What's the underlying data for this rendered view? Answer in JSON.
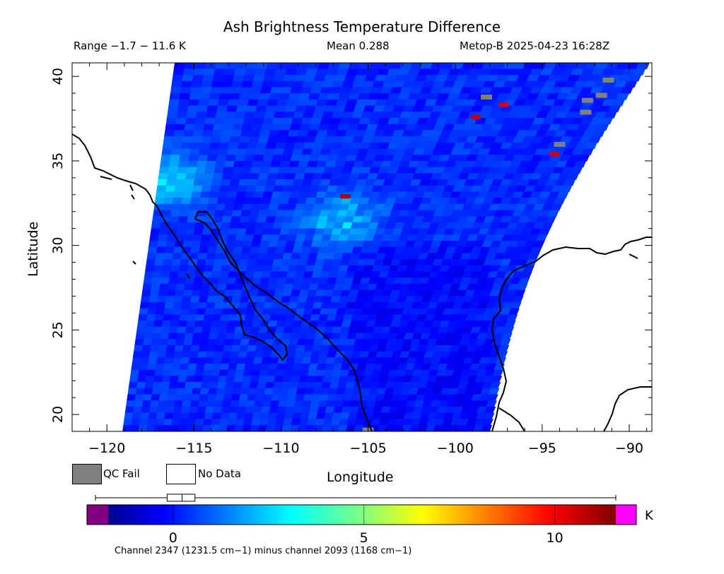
{
  "header": {
    "title": "Ash Brightness Temperature Difference",
    "range": "Range −1.7 − 11.6 K",
    "mean": "Mean 0.288",
    "satellite": "Metop-B 2025-04-23 16:28Z"
  },
  "legend": {
    "qc_fail": "QC Fail",
    "no_data": "No Data"
  },
  "colorbar": {
    "unit": "K",
    "note": "Channel 2347 (1231.5 cm−1) minus channel 2093 (1168 cm−1)",
    "tick_labels": [
      "0",
      "5",
      "10"
    ],
    "under_color": "#800080",
    "over_color": "#ff00ff"
  },
  "chart_data": {
    "type": "heatmap",
    "title": "Ash Brightness Temperature Difference",
    "xlabel": "Longitude",
    "ylabel": "Latitude",
    "xlim": [
      -122,
      -88.7
    ],
    "ylim": [
      19,
      40.8
    ],
    "x_ticks": [
      -120,
      -115,
      -110,
      -105,
      -100,
      -95,
      -90
    ],
    "x_tick_labels": [
      "−120",
      "−115",
      "−110",
      "−105",
      "−100",
      "−95",
      "−90"
    ],
    "y_ticks": [
      20,
      25,
      30,
      35,
      40
    ],
    "y_tick_labels": [
      "20",
      "25",
      "30",
      "35",
      "40"
    ],
    "colorbar_range": [
      -1.7,
      11.6
    ],
    "colorbar_ticks": [
      0,
      5,
      10
    ],
    "value_range": [
      -1.7,
      11.6
    ],
    "mean_value": 0.288,
    "typical_value": 0.5,
    "boxplot": {
      "min": -1.7,
      "q1": -0.1,
      "median": 0.2,
      "q3": 0.5,
      "max": 11.6
    },
    "swath_corners": {
      "top_left": [
        -116.1,
        40.8
      ],
      "top_right": [
        -88.8,
        40.8
      ],
      "bottom_left": [
        -119.1,
        19
      ],
      "bottom_right": [
        -98,
        19
      ]
    },
    "features": [
      {
        "label": "elevated BTD over Baja / Southern California",
        "lon": -116.5,
        "lat": 33.8,
        "value": 3.2
      },
      {
        "label": "elevated BTD north Mexico",
        "lon": -106.5,
        "lat": 31.5,
        "value": 2.8
      },
      {
        "label": "high BTD pixel",
        "lon": -106.3,
        "lat": 32.9,
        "value": 11.0
      },
      {
        "label": "high BTD pixel",
        "lon": -94.3,
        "lat": 35.4,
        "value": 10.5
      },
      {
        "label": "high BTD pixel",
        "lon": -98.8,
        "lat": 37.6,
        "value": 10.8
      },
      {
        "label": "high BTD pixel",
        "lon": -97.2,
        "lat": 38.3,
        "value": 10.4
      }
    ],
    "qc_fail_points": [
      [
        -91.2,
        39.8
      ],
      [
        -91.6,
        38.9
      ],
      [
        -92.4,
        38.6
      ],
      [
        -92.5,
        37.9
      ],
      [
        -98.2,
        38.8
      ],
      [
        -94.0,
        36.0
      ],
      [
        -105.0,
        19.1
      ]
    ]
  }
}
